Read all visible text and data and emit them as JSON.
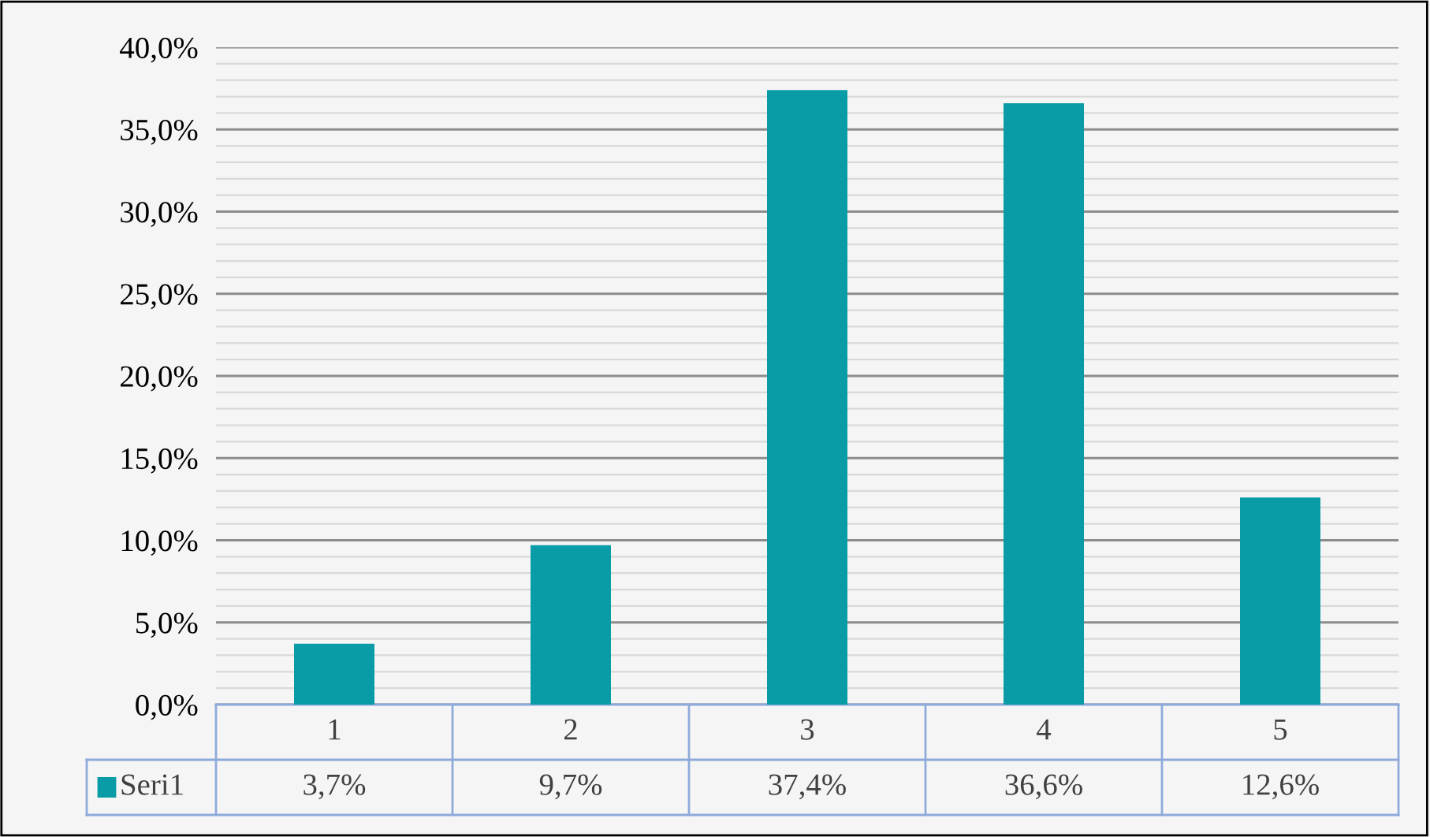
{
  "chart_data": {
    "type": "bar",
    "categories": [
      "1",
      "2",
      "3",
      "4",
      "5"
    ],
    "series": [
      {
        "name": "Seri1",
        "color": "#0a9ca6",
        "values": [
          3.7,
          9.7,
          37.4,
          36.6,
          12.6
        ],
        "value_labels": [
          "3,7%",
          "9,7%",
          "37,4%",
          "36,6%",
          "12,6%"
        ]
      }
    ],
    "ylim": [
      0,
      40
    ],
    "yticks": [
      {
        "value": 0,
        "label": "0,0%"
      },
      {
        "value": 1,
        "label": null
      },
      {
        "value": 2,
        "label": null
      },
      {
        "value": 3,
        "label": null
      },
      {
        "value": 4,
        "label": null
      },
      {
        "value": 5,
        "label": "5,0%"
      },
      {
        "value": 6,
        "label": null
      },
      {
        "value": 7,
        "label": null
      },
      {
        "value": 8,
        "label": null
      },
      {
        "value": 9,
        "label": null
      },
      {
        "value": 10,
        "label": "10,0%"
      },
      {
        "value": 11,
        "label": null
      },
      {
        "value": 12,
        "label": null
      },
      {
        "value": 13,
        "label": null
      },
      {
        "value": 14,
        "label": null
      },
      {
        "value": 15,
        "label": "15,0%"
      },
      {
        "value": 16,
        "label": null
      },
      {
        "value": 17,
        "label": null
      },
      {
        "value": 18,
        "label": null
      },
      {
        "value": 19,
        "label": null
      },
      {
        "value": 20,
        "label": "20,0%"
      },
      {
        "value": 21,
        "label": null
      },
      {
        "value": 22,
        "label": null
      },
      {
        "value": 23,
        "label": null
      },
      {
        "value": 24,
        "label": null
      },
      {
        "value": 25,
        "label": "25,0%"
      },
      {
        "value": 26,
        "label": null
      },
      {
        "value": 27,
        "label": null
      },
      {
        "value": 28,
        "label": null
      },
      {
        "value": 29,
        "label": null
      },
      {
        "value": 30,
        "label": "30,0%"
      },
      {
        "value": 31,
        "label": null
      },
      {
        "value": 32,
        "label": null
      },
      {
        "value": 33,
        "label": null
      },
      {
        "value": 34,
        "label": null
      },
      {
        "value": 35,
        "label": "35,0%"
      },
      {
        "value": 36,
        "label": null
      },
      {
        "value": 37,
        "label": null
      },
      {
        "value": 38,
        "label": null
      },
      {
        "value": 39,
        "label": null
      },
      {
        "value": 40,
        "label": "40,0%"
      }
    ],
    "grid": "y",
    "legend": "bottom left"
  }
}
